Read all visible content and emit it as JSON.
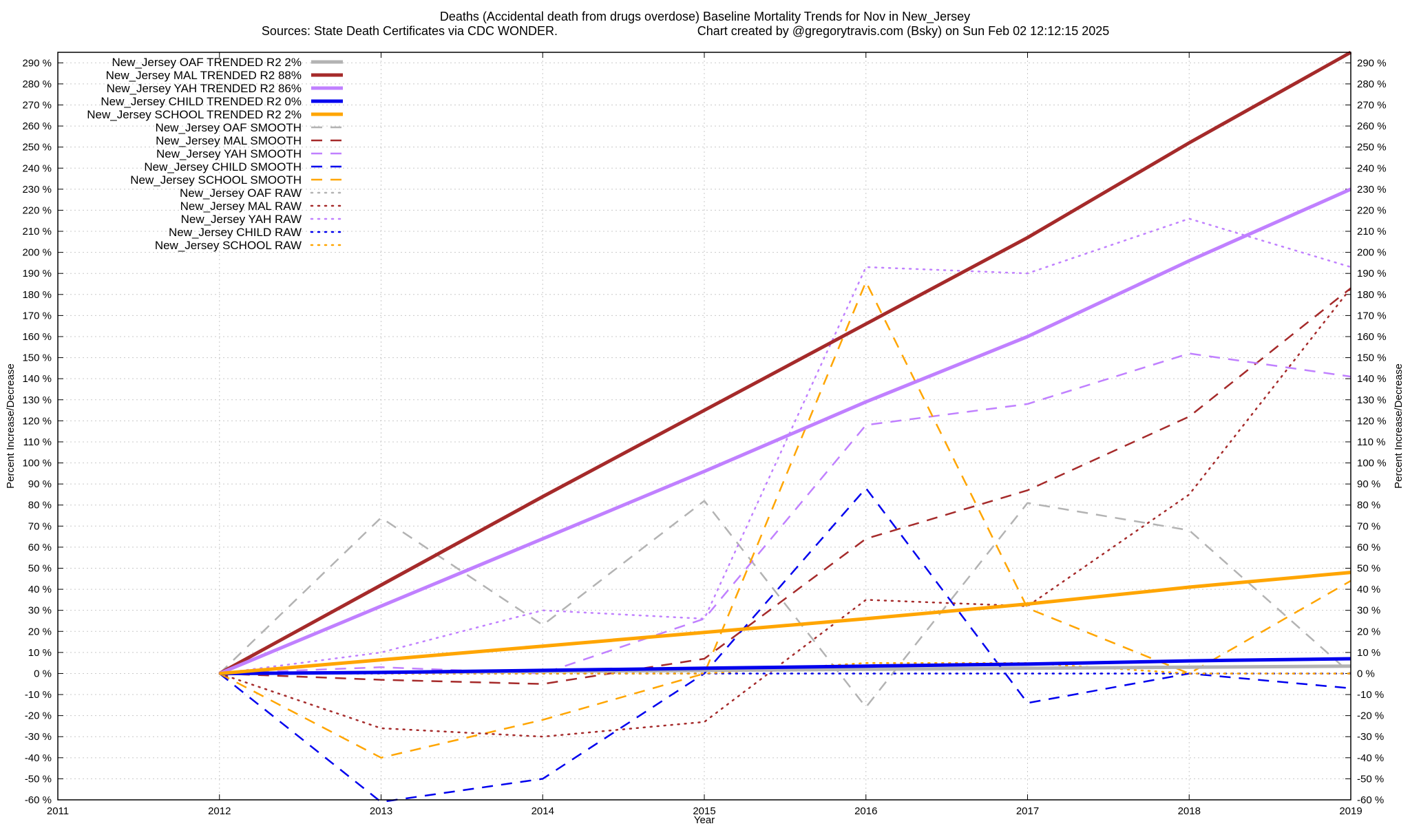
{
  "chart_data": {
    "type": "line",
    "title": "Deaths (Accidental death from drugs overdose)  Baseline Mortality Trends for Nov in New_Jersey",
    "subtitle_left": "Sources: State Death Certificates via CDC WONDER.",
    "subtitle_right": "Chart created by @gregorytravis.com (Bsky) on Sun Feb 02 12:12:15 2025",
    "xlabel": "Year",
    "ylabel": "Percent Increase/Decrease",
    "y2label": "Percent Increase/Decrease",
    "xlim": [
      2011,
      2019
    ],
    "ylim": [
      -60,
      295
    ],
    "xticks": [
      2011,
      2012,
      2013,
      2014,
      2015,
      2016,
      2017,
      2018,
      2019
    ],
    "yticks": [
      -60,
      -50,
      -40,
      -30,
      -20,
      -10,
      0,
      10,
      20,
      30,
      40,
      50,
      60,
      70,
      80,
      90,
      100,
      110,
      120,
      130,
      140,
      150,
      160,
      170,
      180,
      190,
      200,
      210,
      220,
      230,
      240,
      250,
      260,
      270,
      280,
      290
    ],
    "ytick_suffix": " %",
    "grid": true,
    "legend_position": "top-left",
    "series": [
      {
        "name": "New_Jersey OAF TRENDED R2   2%",
        "style": "solid",
        "width": 5,
        "color": "#b3b3b3",
        "x": [
          2012,
          2013,
          2014,
          2015,
          2016,
          2017,
          2018,
          2019
        ],
        "y": [
          0,
          0.5,
          1,
          1.5,
          2,
          2.5,
          3,
          3.5
        ]
      },
      {
        "name": "New_Jersey MAL TRENDED R2  88%",
        "style": "solid",
        "width": 5,
        "color": "#a52a2a",
        "x": [
          2012,
          2013,
          2014,
          2015,
          2016,
          2017,
          2018,
          2019
        ],
        "y": [
          0,
          42,
          84,
          125,
          166,
          207,
          252,
          295
        ]
      },
      {
        "name": "New_Jersey YAH TRENDED R2  86%",
        "style": "solid",
        "width": 5,
        "color": "#c080ff",
        "x": [
          2012,
          2013,
          2014,
          2015,
          2016,
          2017,
          2018,
          2019
        ],
        "y": [
          0,
          32,
          64,
          96,
          129,
          160,
          196,
          230
        ]
      },
      {
        "name": "New_Jersey CHILD TRENDED R2   0%",
        "style": "solid",
        "width": 5,
        "color": "#0000ee",
        "x": [
          2012,
          2013,
          2014,
          2015,
          2016,
          2017,
          2018,
          2019
        ],
        "y": [
          0,
          0.5,
          1.5,
          2.5,
          3.5,
          4.5,
          6,
          7
        ]
      },
      {
        "name": "New_Jersey SCHOOL TRENDED R2   2%",
        "style": "solid",
        "width": 5,
        "color": "#ffa500",
        "x": [
          2012,
          2013,
          2014,
          2015,
          2016,
          2017,
          2018,
          2019
        ],
        "y": [
          0,
          6.5,
          13,
          19.5,
          26,
          33,
          41,
          48
        ]
      },
      {
        "name": "New_Jersey OAF SMOOTH",
        "style": "dashed",
        "width": 2.5,
        "color": "#b3b3b3",
        "x": [
          2012,
          2013,
          2014,
          2015,
          2016,
          2017,
          2018,
          2019
        ],
        "y": [
          0,
          74,
          23,
          82,
          -16,
          81,
          68,
          0
        ]
      },
      {
        "name": "New_Jersey MAL SMOOTH",
        "style": "dashed",
        "width": 2.5,
        "color": "#a52a2a",
        "x": [
          2012,
          2013,
          2014,
          2015,
          2016,
          2017,
          2018,
          2019
        ],
        "y": [
          0,
          -3,
          -5,
          7,
          64,
          87,
          122,
          183
        ]
      },
      {
        "name": "New_Jersey YAH SMOOTH",
        "style": "dashed",
        "width": 2.5,
        "color": "#c080ff",
        "x": [
          2012,
          2013,
          2014,
          2015,
          2016,
          2017,
          2018,
          2019
        ],
        "y": [
          0,
          3,
          0,
          26,
          118,
          128,
          152,
          141
        ]
      },
      {
        "name": "New_Jersey CHILD SMOOTH",
        "style": "dashed",
        "width": 2.5,
        "color": "#0000ee",
        "x": [
          2012,
          2013,
          2014,
          2015,
          2016,
          2017,
          2018,
          2019
        ],
        "y": [
          0,
          -61,
          -50,
          0,
          88,
          -14,
          0,
          -7
        ]
      },
      {
        "name": "New_Jersey SCHOOL SMOOTH",
        "style": "dashed",
        "width": 2.5,
        "color": "#ffa500",
        "x": [
          2012,
          2013,
          2014,
          2015,
          2016,
          2017,
          2018,
          2019
        ],
        "y": [
          0,
          -40,
          -22,
          0,
          186,
          31,
          0,
          44
        ]
      },
      {
        "name": "New_Jersey OAF RAW",
        "style": "dotted",
        "width": 2.5,
        "color": "#b3b3b3",
        "x": [
          2012,
          2013,
          2014,
          2015,
          2016,
          2017,
          2018,
          2019
        ],
        "y": [
          0,
          0,
          0,
          0,
          0,
          0,
          0,
          0
        ]
      },
      {
        "name": "New_Jersey MAL RAW",
        "style": "dotted",
        "width": 2.5,
        "color": "#a52a2a",
        "x": [
          2012,
          2013,
          2014,
          2015,
          2016,
          2017,
          2018,
          2019
        ],
        "y": [
          0,
          -26,
          -30,
          -23,
          35,
          32,
          85,
          183
        ]
      },
      {
        "name": "New_Jersey YAH RAW",
        "style": "dotted",
        "width": 2.5,
        "color": "#c080ff",
        "x": [
          2012,
          2013,
          2014,
          2015,
          2016,
          2017,
          2018,
          2019
        ],
        "y": [
          0,
          10,
          30,
          26,
          193,
          190,
          216,
          193
        ]
      },
      {
        "name": "New_Jersey CHILD RAW",
        "style": "dotted",
        "width": 2.5,
        "color": "#0000ee",
        "x": [
          2012,
          2013,
          2014,
          2015,
          2016,
          2017,
          2018,
          2019
        ],
        "y": [
          0,
          0,
          0,
          0,
          0,
          0,
          0,
          0
        ]
      },
      {
        "name": "New_Jersey SCHOOL RAW",
        "style": "dotted",
        "width": 2.5,
        "color": "#ffa500",
        "x": [
          2012,
          2013,
          2014,
          2015,
          2016,
          2017,
          2018,
          2019
        ],
        "y": [
          0,
          0,
          0,
          0,
          5,
          5,
          0,
          0
        ]
      }
    ]
  }
}
